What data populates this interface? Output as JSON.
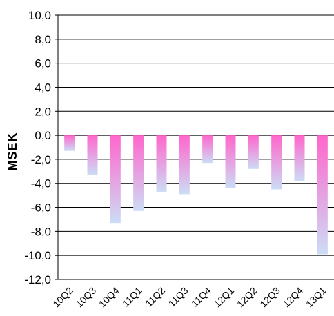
{
  "chart_data": {
    "type": "bar",
    "title": "",
    "xlabel": "",
    "ylabel": "MSEK",
    "ylim": [
      -12,
      10
    ],
    "yticks": [
      "10,0",
      "8,0",
      "6,0",
      "4,0",
      "2,0",
      "0,0",
      "-2,0",
      "-4,0",
      "-6,0",
      "-8,0",
      "-10,0",
      "-12,0"
    ],
    "categories": [
      "10Q2",
      "10Q3",
      "10Q4",
      "11Q1",
      "11Q2",
      "11Q3",
      "11Q4",
      "12Q1",
      "12Q2",
      "12Q3",
      "12Q4",
      "13Q1"
    ],
    "values": [
      -1.3,
      -3.3,
      -7.3,
      -6.3,
      -4.7,
      -4.9,
      -2.3,
      -4.4,
      -2.8,
      -4.5,
      -3.8,
      -9.9
    ],
    "grid": true,
    "legend": "none",
    "colors": {
      "bar_top": "#ff66cc",
      "bar_bottom": "#ccdcf5",
      "gridline": "#000000",
      "axis": "#000000"
    }
  }
}
